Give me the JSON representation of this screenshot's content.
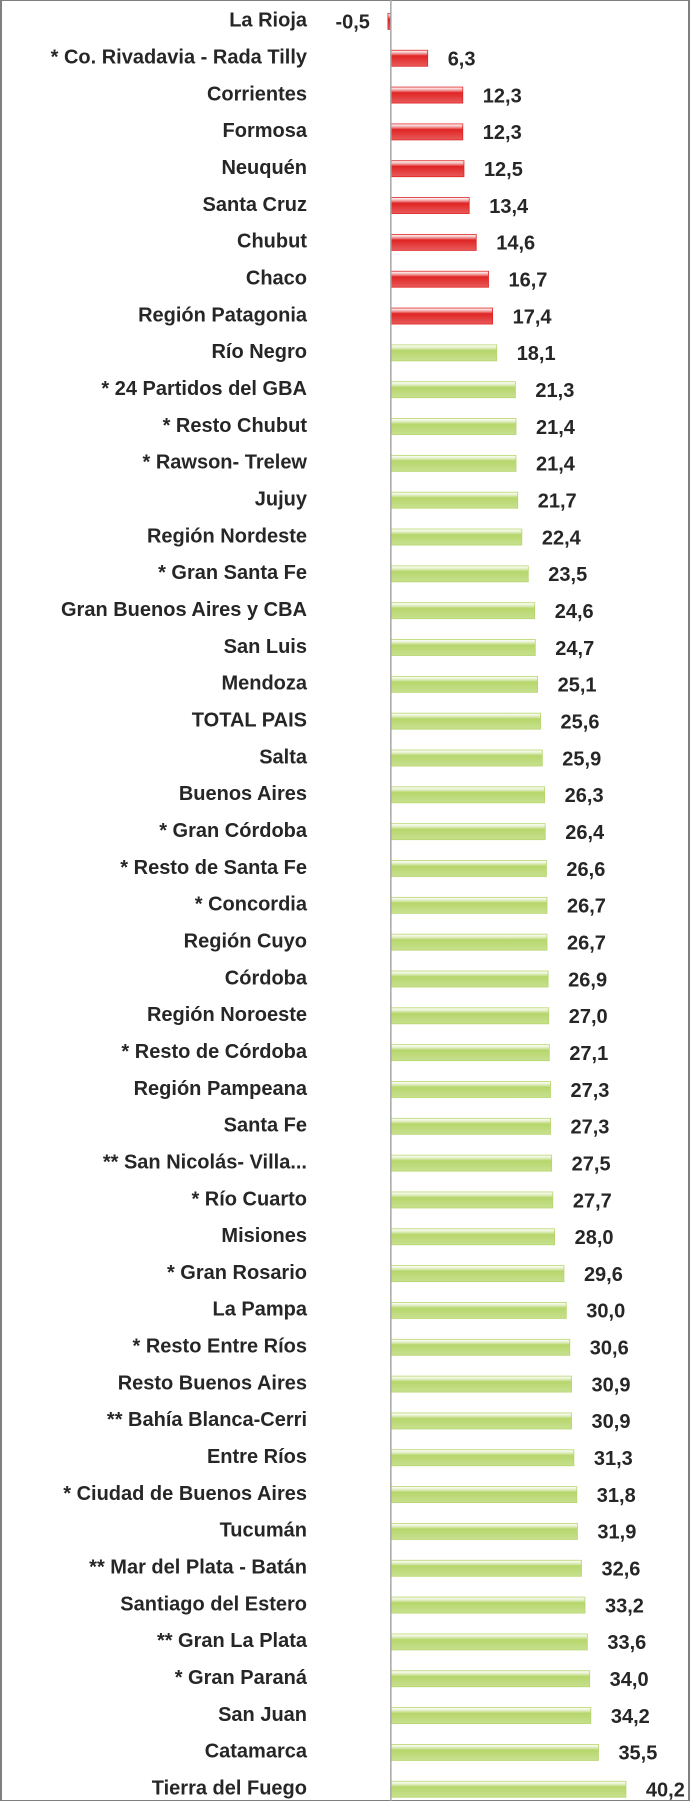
{
  "chart_data": {
    "type": "bar",
    "orientation": "horizontal",
    "categories": [
      "La Rioja",
      "* Co. Rivadavia - Rada Tilly",
      "Corrientes",
      "Formosa",
      "Neuquén",
      "Santa Cruz",
      "Chubut",
      "Chaco",
      "Región Patagonia",
      "Río Negro",
      "* 24 Partidos del GBA",
      "* Resto Chubut",
      "* Rawson- Trelew",
      "Jujuy",
      "Región Nordeste",
      "* Gran Santa Fe",
      "Gran Buenos Aires y CBA",
      "San Luis",
      "Mendoza",
      "TOTAL PAIS",
      "Salta",
      "Buenos Aires",
      "* Gran Córdoba",
      "* Resto de Santa Fe",
      "* Concordia",
      "Región Cuyo",
      "Córdoba",
      "Región Noroeste",
      "* Resto de Córdoba",
      "Región Pampeana",
      "Santa Fe",
      "** San Nicolás- Villa...",
      "* Río Cuarto",
      "Misiones",
      "* Gran Rosario",
      "La Pampa",
      "* Resto Entre Ríos",
      "Resto Buenos Aires",
      "** Bahía Blanca-Cerri",
      "Entre Ríos",
      "* Ciudad de Buenos Aires",
      "Tucumán",
      "** Mar del Plata - Batán",
      "Santiago del Estero",
      "** Gran La Plata",
      "* Gran Paraná",
      "San Juan",
      "Catamarca",
      "Tierra del Fuego"
    ],
    "values": [
      -0.5,
      6.3,
      12.3,
      12.3,
      12.5,
      13.4,
      14.6,
      16.7,
      17.4,
      18.1,
      21.3,
      21.4,
      21.4,
      21.7,
      22.4,
      23.5,
      24.6,
      24.7,
      25.1,
      25.6,
      25.9,
      26.3,
      26.4,
      26.6,
      26.7,
      26.7,
      26.9,
      27.0,
      27.1,
      27.3,
      27.3,
      27.5,
      27.7,
      28.0,
      29.6,
      30.0,
      30.6,
      30.9,
      30.9,
      31.3,
      31.8,
      31.9,
      32.6,
      33.2,
      33.6,
      34.0,
      34.2,
      35.5,
      40.2
    ],
    "value_labels": [
      "-0,5",
      "6,3",
      "12,3",
      "12,3",
      "12,5",
      "13,4",
      "14,6",
      "16,7",
      "17,4",
      "18,1",
      "21,3",
      "21,4",
      "21,4",
      "21,7",
      "22,4",
      "23,5",
      "24,6",
      "24,7",
      "25,1",
      "25,6",
      "25,9",
      "26,3",
      "26,4",
      "26,6",
      "26,7",
      "26,7",
      "26,9",
      "27,0",
      "27,1",
      "27,3",
      "27,3",
      "27,5",
      "27,7",
      "28,0",
      "29,6",
      "30,0",
      "30,6",
      "30,9",
      "30,9",
      "31,3",
      "31,8",
      "31,9",
      "32,6",
      "33,2",
      "33,6",
      "34,0",
      "34,2",
      "35,5",
      "40,2"
    ],
    "colors": [
      "#e02424",
      "#e02424",
      "#e02424",
      "#e02424",
      "#e02424",
      "#e02424",
      "#e02424",
      "#e02424",
      "#e02424",
      "#b6d66b",
      "#b6d66b",
      "#b6d66b",
      "#b6d66b",
      "#b6d66b",
      "#b6d66b",
      "#b6d66b",
      "#b6d66b",
      "#b6d66b",
      "#b6d66b",
      "#b6d66b",
      "#b6d66b",
      "#b6d66b",
      "#b6d66b",
      "#b6d66b",
      "#b6d66b",
      "#b6d66b",
      "#b6d66b",
      "#b6d66b",
      "#b6d66b",
      "#b6d66b",
      "#b6d66b",
      "#b6d66b",
      "#b6d66b",
      "#b6d66b",
      "#b6d66b",
      "#b6d66b",
      "#b6d66b",
      "#b6d66b",
      "#b6d66b",
      "#b6d66b",
      "#b6d66b",
      "#b6d66b",
      "#b6d66b",
      "#b6d66b",
      "#b6d66b",
      "#b6d66b",
      "#b6d66b",
      "#b6d66b",
      "#b6d66b"
    ],
    "xlim": [
      -1,
      45
    ]
  }
}
